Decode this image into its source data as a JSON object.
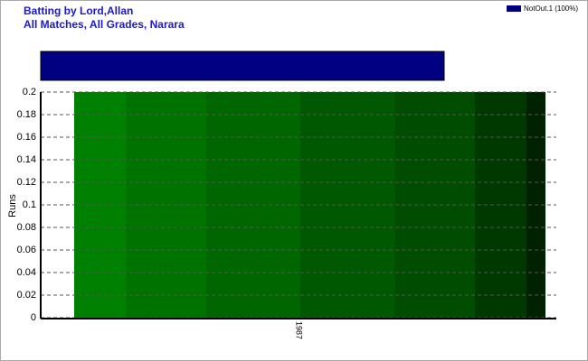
{
  "chart_data": {
    "type": "bar",
    "title": "Batting by Lord,Allan",
    "subtitle": "All Matches, All Grades, Narara",
    "y_label": "Runs",
    "categories": [
      "1987"
    ],
    "series": [
      {
        "name": "NotOut.1 (100%)",
        "color": "#000080",
        "values": [
          0.2
        ]
      }
    ],
    "ylim": [
      0,
      0.2
    ],
    "yticks": [
      0,
      0.02,
      0.04,
      0.06,
      0.08,
      0.1,
      0.12,
      0.14,
      0.16,
      0.18,
      0.2
    ],
    "grid": true
  }
}
